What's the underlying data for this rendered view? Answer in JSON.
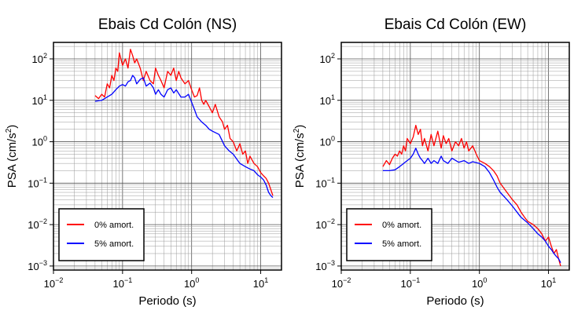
{
  "chart_data": [
    {
      "type": "line",
      "title": "Ebais Cd Colón (NS)",
      "xlabel": "Periodo (s)",
      "ylabel": "PSA (cm/s²)",
      "x_scale": "log",
      "y_scale": "log",
      "xlim": [
        0.01,
        20
      ],
      "ylim": [
        0.0008,
        250
      ],
      "x_ticks": [
        {
          "value": 0.01,
          "base": "10",
          "exp": "−2"
        },
        {
          "value": 0.1,
          "base": "10",
          "exp": "−1"
        },
        {
          "value": 1,
          "base": "10",
          "exp": "0"
        },
        {
          "value": 10,
          "base": "10",
          "exp": "1"
        }
      ],
      "y_ticks": [
        {
          "value": 0.001,
          "base": "10",
          "exp": "−3"
        },
        {
          "value": 0.01,
          "base": "10",
          "exp": "−2"
        },
        {
          "value": 0.1,
          "base": "10",
          "exp": "−1"
        },
        {
          "value": 1,
          "base": "10",
          "exp": "0"
        },
        {
          "value": 10,
          "base": "10",
          "exp": "1"
        },
        {
          "value": 100,
          "base": "10",
          "exp": "2"
        }
      ],
      "grid": true,
      "legend_position": "bottom-left",
      "series": [
        {
          "name": "0% amort.",
          "color": "#ff0000",
          "x": [
            0.04,
            0.045,
            0.05,
            0.055,
            0.06,
            0.065,
            0.07,
            0.075,
            0.08,
            0.085,
            0.09,
            0.1,
            0.11,
            0.12,
            0.13,
            0.14,
            0.15,
            0.16,
            0.18,
            0.2,
            0.22,
            0.25,
            0.28,
            0.3,
            0.33,
            0.36,
            0.4,
            0.45,
            0.5,
            0.55,
            0.6,
            0.65,
            0.7,
            0.8,
            0.9,
            1.0,
            1.1,
            1.2,
            1.3,
            1.4,
            1.5,
            1.6,
            1.8,
            2.0,
            2.2,
            2.5,
            2.8,
            3.0,
            3.3,
            3.6,
            4.0,
            4.5,
            5.0,
            5.5,
            6.0,
            6.5,
            7.0,
            8.0,
            9.0,
            10.0,
            11.0,
            12.0,
            13.0,
            14.0,
            15.0
          ],
          "y": [
            13,
            11,
            14,
            12,
            25,
            20,
            40,
            30,
            60,
            50,
            140,
            70,
            100,
            60,
            170,
            120,
            80,
            100,
            60,
            30,
            50,
            30,
            25,
            60,
            40,
            30,
            20,
            50,
            40,
            60,
            30,
            50,
            35,
            25,
            30,
            18,
            12,
            13,
            20,
            10,
            8,
            10,
            7,
            5,
            8,
            4,
            3,
            2,
            2.5,
            1.2,
            1.0,
            0.6,
            0.9,
            0.5,
            0.6,
            0.3,
            0.45,
            0.3,
            0.25,
            0.18,
            0.15,
            0.13,
            0.1,
            0.07,
            0.05
          ]
        },
        {
          "name": "5% amort.",
          "color": "#0000ff",
          "x": [
            0.04,
            0.05,
            0.06,
            0.07,
            0.08,
            0.09,
            0.1,
            0.11,
            0.12,
            0.13,
            0.14,
            0.15,
            0.16,
            0.18,
            0.2,
            0.22,
            0.25,
            0.28,
            0.3,
            0.33,
            0.36,
            0.4,
            0.45,
            0.5,
            0.55,
            0.6,
            0.7,
            0.8,
            0.9,
            1.0,
            1.1,
            1.2,
            1.4,
            1.6,
            1.8,
            2.0,
            2.5,
            3.0,
            3.5,
            4.0,
            5.0,
            6.0,
            7.0,
            8.0,
            9.0,
            10.0,
            11.0,
            12.0,
            13.0,
            14.0,
            15.0
          ],
          "y": [
            9.5,
            10,
            12,
            14,
            18,
            22,
            24,
            22,
            28,
            30,
            40,
            35,
            25,
            32,
            35,
            22,
            26,
            20,
            14,
            18,
            14,
            12,
            18,
            20,
            15,
            18,
            12,
            12,
            14,
            9,
            6,
            4,
            3,
            2.5,
            2,
            1.8,
            1.5,
            0.8,
            0.6,
            0.5,
            0.3,
            0.25,
            0.22,
            0.2,
            0.16,
            0.14,
            0.12,
            0.09,
            0.06,
            0.05,
            0.045
          ]
        }
      ]
    },
    {
      "type": "line",
      "title": "Ebais Cd Colón (EW)",
      "xlabel": "Periodo (s)",
      "ylabel": "PSA (cm/s²)",
      "x_scale": "log",
      "y_scale": "log",
      "xlim": [
        0.01,
        20
      ],
      "ylim": [
        0.0008,
        250
      ],
      "x_ticks": [
        {
          "value": 0.01,
          "base": "10",
          "exp": "−2"
        },
        {
          "value": 0.1,
          "base": "10",
          "exp": "−1"
        },
        {
          "value": 1,
          "base": "10",
          "exp": "0"
        },
        {
          "value": 10,
          "base": "10",
          "exp": "1"
        }
      ],
      "y_ticks": [
        {
          "value": 0.001,
          "base": "10",
          "exp": "−3"
        },
        {
          "value": 0.01,
          "base": "10",
          "exp": "−2"
        },
        {
          "value": 0.1,
          "base": "10",
          "exp": "−1"
        },
        {
          "value": 1,
          "base": "10",
          "exp": "0"
        },
        {
          "value": 10,
          "base": "10",
          "exp": "1"
        },
        {
          "value": 100,
          "base": "10",
          "exp": "2"
        }
      ],
      "grid": true,
      "legend_position": "bottom-left",
      "series": [
        {
          "name": "0% amort.",
          "color": "#ff0000",
          "x": [
            0.04,
            0.045,
            0.05,
            0.055,
            0.06,
            0.065,
            0.07,
            0.075,
            0.08,
            0.085,
            0.09,
            0.1,
            0.11,
            0.12,
            0.13,
            0.14,
            0.15,
            0.16,
            0.18,
            0.2,
            0.22,
            0.25,
            0.28,
            0.3,
            0.33,
            0.36,
            0.4,
            0.45,
            0.5,
            0.55,
            0.6,
            0.65,
            0.7,
            0.8,
            0.9,
            1.0,
            1.2,
            1.4,
            1.6,
            1.8,
            2.0,
            2.5,
            3.0,
            3.5,
            4.0,
            4.5,
            5.0,
            6.0,
            7.0,
            8.0,
            9.0,
            10.0,
            11.0,
            12.0,
            13.0,
            14.0,
            15.0
          ],
          "y": [
            0.25,
            0.35,
            0.28,
            0.4,
            0.5,
            0.45,
            0.6,
            0.5,
            0.8,
            0.6,
            1.2,
            0.9,
            1.3,
            2.5,
            1.5,
            2.0,
            0.8,
            1.2,
            0.6,
            1.5,
            0.8,
            1.8,
            0.7,
            1.4,
            0.9,
            1.2,
            0.6,
            1.0,
            0.8,
            1.2,
            0.7,
            1.0,
            0.6,
            0.8,
            0.5,
            0.35,
            0.3,
            0.25,
            0.2,
            0.15,
            0.1,
            0.06,
            0.04,
            0.03,
            0.02,
            0.015,
            0.012,
            0.01,
            0.008,
            0.006,
            0.004,
            0.005,
            0.003,
            0.002,
            0.0025,
            0.0015,
            0.001
          ]
        },
        {
          "name": "5% amort.",
          "color": "#0000ff",
          "x": [
            0.04,
            0.05,
            0.06,
            0.07,
            0.08,
            0.09,
            0.1,
            0.11,
            0.12,
            0.13,
            0.14,
            0.15,
            0.16,
            0.18,
            0.2,
            0.22,
            0.25,
            0.28,
            0.3,
            0.35,
            0.4,
            0.5,
            0.6,
            0.7,
            0.8,
            1.0,
            1.2,
            1.4,
            1.6,
            1.8,
            2.0,
            2.5,
            3.0,
            3.5,
            4.0,
            5.0,
            6.0,
            7.0,
            8.0,
            9.0,
            10.0,
            11.0,
            12.0,
            13.0,
            14.0,
            15.0
          ],
          "y": [
            0.2,
            0.2,
            0.21,
            0.25,
            0.3,
            0.35,
            0.4,
            0.5,
            0.7,
            0.5,
            0.4,
            0.35,
            0.3,
            0.4,
            0.3,
            0.35,
            0.3,
            0.45,
            0.35,
            0.3,
            0.4,
            0.32,
            0.35,
            0.3,
            0.33,
            0.3,
            0.25,
            0.18,
            0.12,
            0.08,
            0.06,
            0.04,
            0.028,
            0.02,
            0.015,
            0.011,
            0.008,
            0.006,
            0.005,
            0.004,
            0.003,
            0.0025,
            0.002,
            0.0017,
            0.0015,
            0.0012
          ]
        }
      ]
    }
  ]
}
